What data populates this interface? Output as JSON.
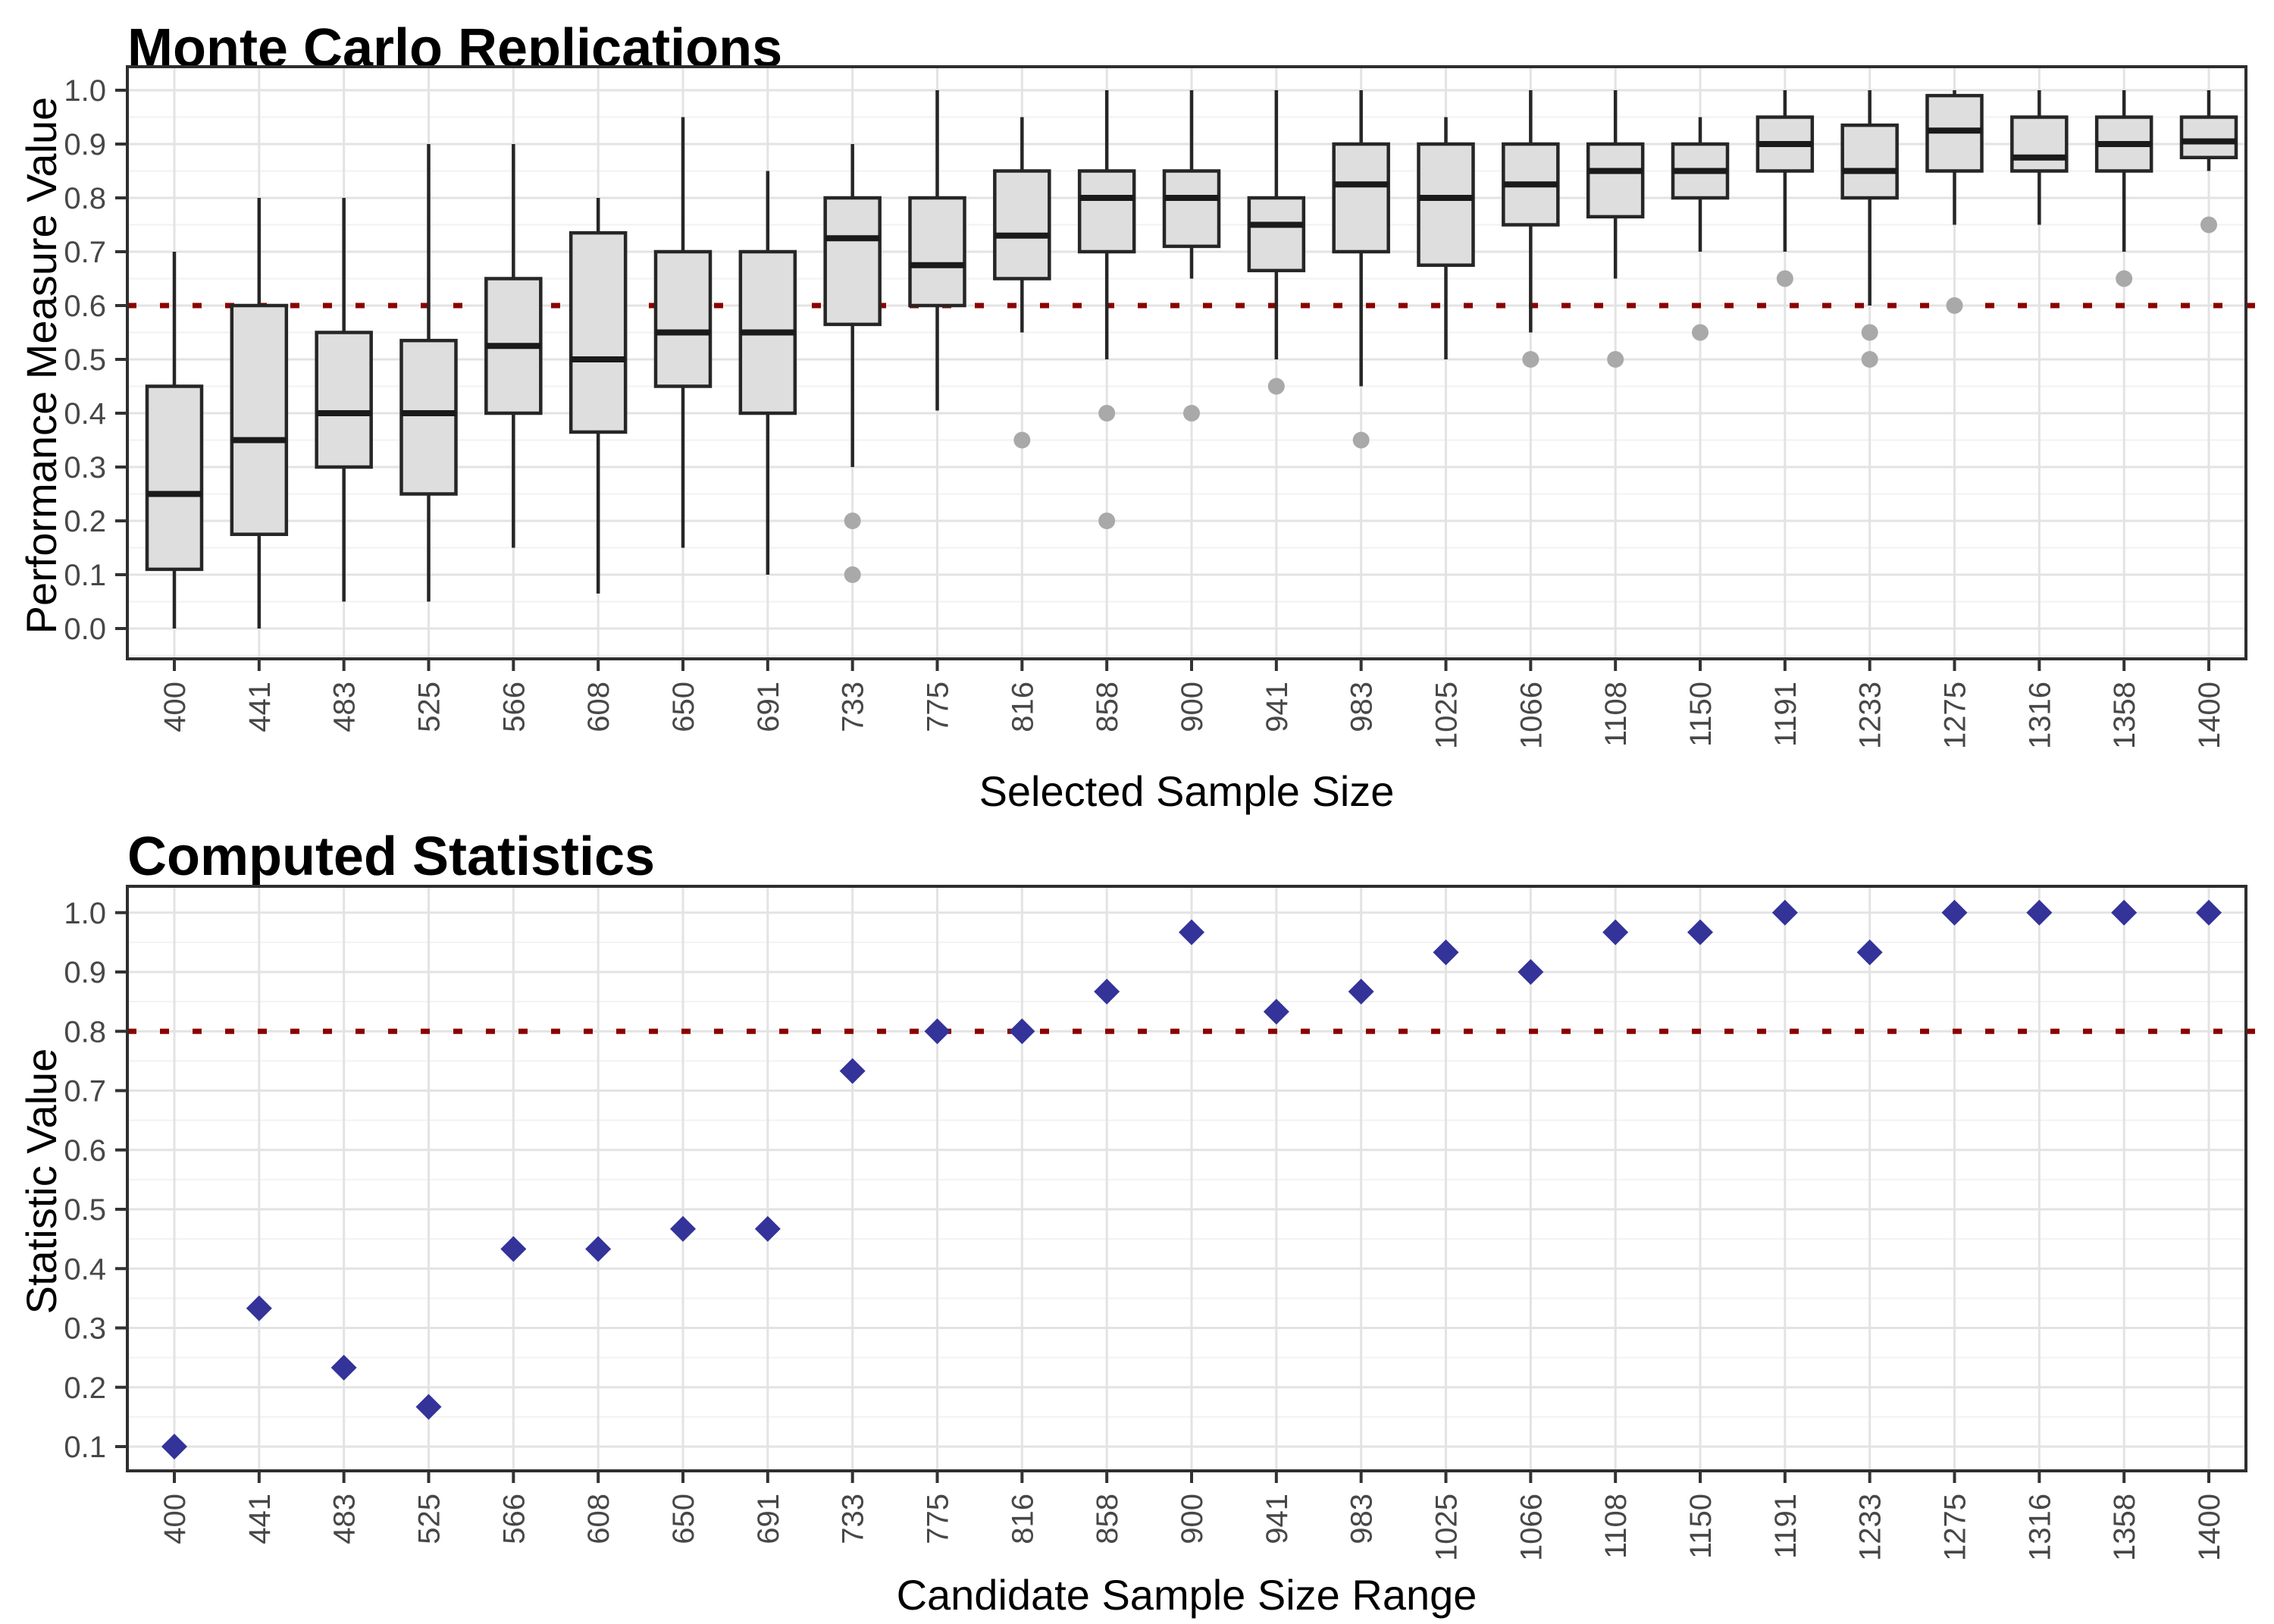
{
  "chart_data": [
    {
      "type": "boxplot",
      "title": "Monte Carlo Replications",
      "xlabel": "Selected Sample Size",
      "ylabel": "Performance Measure Value",
      "categories": [
        "400",
        "441",
        "483",
        "525",
        "566",
        "608",
        "650",
        "691",
        "733",
        "775",
        "816",
        "858",
        "900",
        "941",
        "983",
        "1025",
        "1066",
        "1108",
        "1150",
        "1191",
        "1233",
        "1275",
        "1316",
        "1358",
        "1400"
      ],
      "y_ticks": [
        "0.0",
        "0.1",
        "0.2",
        "0.3",
        "0.4",
        "0.5",
        "0.6",
        "0.7",
        "0.8",
        "0.9",
        "1.0"
      ],
      "ylim": [
        -0.05,
        1.05
      ],
      "reference_line": 0.6,
      "grid": "major-and-minor",
      "boxes": [
        {
          "category": "400",
          "whisker_low": 0.0,
          "q1": 0.11,
          "median": 0.25,
          "q3": 0.45,
          "whisker_high": 0.7,
          "outliers": []
        },
        {
          "category": "441",
          "whisker_low": 0.0,
          "q1": 0.175,
          "median": 0.35,
          "q3": 0.6,
          "whisker_high": 0.8,
          "outliers": []
        },
        {
          "category": "483",
          "whisker_low": 0.05,
          "q1": 0.3,
          "median": 0.4,
          "q3": 0.55,
          "whisker_high": 0.8,
          "outliers": []
        },
        {
          "category": "525",
          "whisker_low": 0.05,
          "q1": 0.25,
          "median": 0.4,
          "q3": 0.535,
          "whisker_high": 0.9,
          "outliers": []
        },
        {
          "category": "566",
          "whisker_low": 0.15,
          "q1": 0.4,
          "median": 0.525,
          "q3": 0.65,
          "whisker_high": 0.9,
          "outliers": []
        },
        {
          "category": "608",
          "whisker_low": 0.065,
          "q1": 0.365,
          "median": 0.5,
          "q3": 0.735,
          "whisker_high": 0.8,
          "outliers": []
        },
        {
          "category": "650",
          "whisker_low": 0.15,
          "q1": 0.45,
          "median": 0.55,
          "q3": 0.7,
          "whisker_high": 0.95,
          "outliers": []
        },
        {
          "category": "691",
          "whisker_low": 0.1,
          "q1": 0.4,
          "median": 0.55,
          "q3": 0.7,
          "whisker_high": 0.85,
          "outliers": []
        },
        {
          "category": "733",
          "whisker_low": 0.3,
          "q1": 0.565,
          "median": 0.725,
          "q3": 0.8,
          "whisker_high": 0.9,
          "outliers": [
            0.2,
            0.1
          ]
        },
        {
          "category": "775",
          "whisker_low": 0.405,
          "q1": 0.6,
          "median": 0.675,
          "q3": 0.8,
          "whisker_high": 1.0,
          "outliers": []
        },
        {
          "category": "816",
          "whisker_low": 0.55,
          "q1": 0.65,
          "median": 0.73,
          "q3": 0.85,
          "whisker_high": 0.95,
          "outliers": [
            0.35
          ]
        },
        {
          "category": "858",
          "whisker_low": 0.5,
          "q1": 0.7,
          "median": 0.8,
          "q3": 0.85,
          "whisker_high": 1.0,
          "outliers": [
            0.4,
            0.2
          ]
        },
        {
          "category": "900",
          "whisker_low": 0.65,
          "q1": 0.71,
          "median": 0.8,
          "q3": 0.85,
          "whisker_high": 1.0,
          "outliers": [
            0.4
          ]
        },
        {
          "category": "941",
          "whisker_low": 0.5,
          "q1": 0.665,
          "median": 0.75,
          "q3": 0.8,
          "whisker_high": 1.0,
          "outliers": [
            0.45
          ]
        },
        {
          "category": "983",
          "whisker_low": 0.45,
          "q1": 0.7,
          "median": 0.825,
          "q3": 0.9,
          "whisker_high": 1.0,
          "outliers": [
            0.35
          ]
        },
        {
          "category": "1025",
          "whisker_low": 0.5,
          "q1": 0.675,
          "median": 0.8,
          "q3": 0.9,
          "whisker_high": 0.95,
          "outliers": []
        },
        {
          "category": "1066",
          "whisker_low": 0.55,
          "q1": 0.75,
          "median": 0.825,
          "q3": 0.9,
          "whisker_high": 1.0,
          "outliers": [
            0.5
          ]
        },
        {
          "category": "1108",
          "whisker_low": 0.65,
          "q1": 0.765,
          "median": 0.85,
          "q3": 0.9,
          "whisker_high": 1.0,
          "outliers": [
            0.5
          ]
        },
        {
          "category": "1150",
          "whisker_low": 0.7,
          "q1": 0.8,
          "median": 0.85,
          "q3": 0.9,
          "whisker_high": 0.95,
          "outliers": [
            0.55
          ]
        },
        {
          "category": "1191",
          "whisker_low": 0.7,
          "q1": 0.85,
          "median": 0.9,
          "q3": 0.95,
          "whisker_high": 1.0,
          "outliers": [
            0.65
          ]
        },
        {
          "category": "1233",
          "whisker_low": 0.6,
          "q1": 0.8,
          "median": 0.85,
          "q3": 0.935,
          "whisker_high": 1.0,
          "outliers": [
            0.55,
            0.5
          ]
        },
        {
          "category": "1275",
          "whisker_low": 0.75,
          "q1": 0.85,
          "median": 0.925,
          "q3": 0.99,
          "whisker_high": 1.0,
          "outliers": [
            0.6
          ]
        },
        {
          "category": "1316",
          "whisker_low": 0.75,
          "q1": 0.85,
          "median": 0.875,
          "q3": 0.95,
          "whisker_high": 1.0,
          "outliers": []
        },
        {
          "category": "1358",
          "whisker_low": 0.7,
          "q1": 0.85,
          "median": 0.9,
          "q3": 0.95,
          "whisker_high": 1.0,
          "outliers": [
            0.65
          ]
        },
        {
          "category": "1400",
          "whisker_low": 0.85,
          "q1": 0.875,
          "median": 0.905,
          "q3": 0.95,
          "whisker_high": 1.0,
          "outliers": [
            0.75
          ]
        }
      ]
    },
    {
      "type": "scatter",
      "title": "Computed Statistics",
      "xlabel": "Candidate Sample Size Range",
      "ylabel": "Statistic Value",
      "categories": [
        "400",
        "441",
        "483",
        "525",
        "566",
        "608",
        "650",
        "691",
        "733",
        "775",
        "816",
        "858",
        "900",
        "941",
        "983",
        "1025",
        "1066",
        "1108",
        "1150",
        "1191",
        "1233",
        "1275",
        "1316",
        "1358",
        "1400"
      ],
      "y_ticks": [
        "0.1",
        "0.2",
        "0.3",
        "0.4",
        "0.5",
        "0.6",
        "0.7",
        "0.8",
        "0.9",
        "1.0"
      ],
      "ylim": [
        0.055,
        1.045
      ],
      "reference_line": 0.8,
      "grid": "major-and-minor",
      "values": [
        0.1,
        0.333,
        0.233,
        0.167,
        0.433,
        0.433,
        0.467,
        0.467,
        0.733,
        0.8,
        0.8,
        0.867,
        0.967,
        0.833,
        0.867,
        0.933,
        0.9,
        0.967,
        0.967,
        1.0,
        0.933,
        1.0,
        1.0,
        1.0,
        1.0
      ],
      "marker": "diamond"
    }
  ],
  "colors": {
    "box_fill": "#dedede",
    "box_stroke": "#262626",
    "median_stroke": "#1a1a1a",
    "outlier_fill": "#a9a9a9",
    "diamond_fill": "#333399",
    "reference_line": "#8b0000",
    "grid_major": "#e3e3e3",
    "grid_minor": "#f2f2f2",
    "axis_text": "#474747",
    "tick_mark": "#333333",
    "panel_border": "#2e2e2e",
    "panel_background": "#ffffff"
  }
}
